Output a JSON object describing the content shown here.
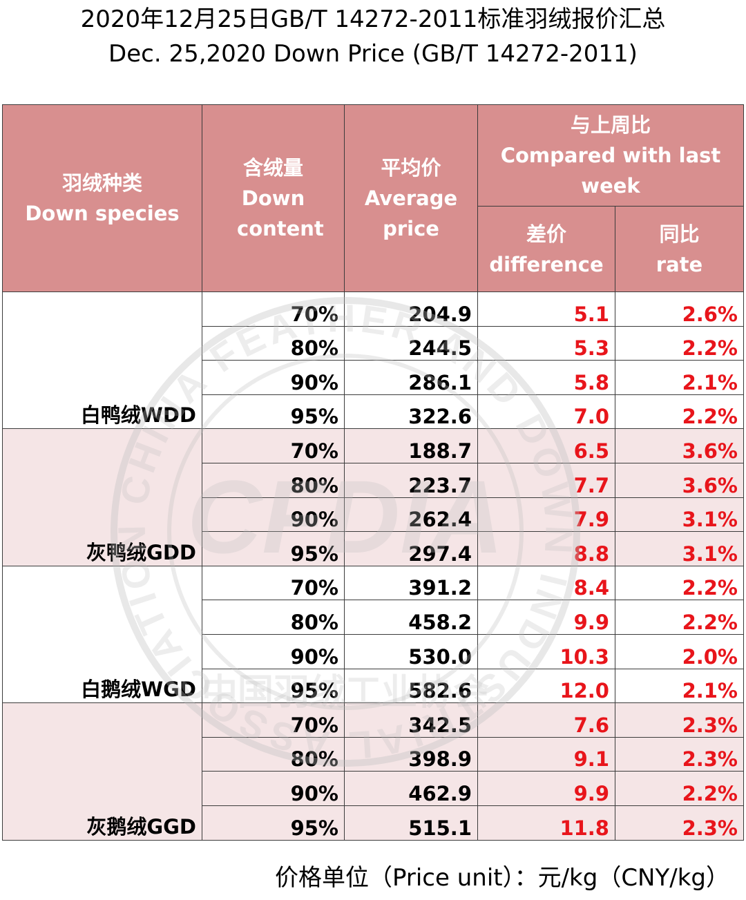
{
  "title_cn": "2020年12月25日GB/T 14272-2011标准羽绒报价汇总",
  "title_en": "Dec. 25,2020 Down Price (GB/T 14272-2011)",
  "headers": {
    "species_cn": "羽绒种类",
    "species_en": "Down species",
    "content_cn": "含绒量",
    "content_en": "Down content",
    "avg_cn": "平均价",
    "avg_en": "Average price",
    "compare_cn": "与上周比",
    "compare_en": "Compared with last week",
    "diff_cn": "差价",
    "diff_en": "difference",
    "rate_cn": "同比",
    "rate_en": "rate"
  },
  "groups": [
    {
      "species": "白鸭绒WDD",
      "rows": [
        {
          "content": "70%",
          "price": "204.9",
          "diff": "5.1",
          "rate": "2.6%"
        },
        {
          "content": "80%",
          "price": "244.5",
          "diff": "5.3",
          "rate": "2.2%"
        },
        {
          "content": "90%",
          "price": "286.1",
          "diff": "5.8",
          "rate": "2.1%"
        },
        {
          "content": "95%",
          "price": "322.6",
          "diff": "7.0",
          "rate": "2.2%"
        }
      ]
    },
    {
      "species": "灰鸭绒GDD",
      "rows": [
        {
          "content": "70%",
          "price": "188.7",
          "diff": "6.5",
          "rate": "3.6%"
        },
        {
          "content": "80%",
          "price": "223.7",
          "diff": "7.7",
          "rate": "3.6%"
        },
        {
          "content": "90%",
          "price": "262.4",
          "diff": "7.9",
          "rate": "3.1%"
        },
        {
          "content": "95%",
          "price": "297.4",
          "diff": "8.8",
          "rate": "3.1%"
        }
      ]
    },
    {
      "species": "白鹅绒WGD",
      "rows": [
        {
          "content": "70%",
          "price": "391.2",
          "diff": "8.4",
          "rate": "2.2%"
        },
        {
          "content": "80%",
          "price": "458.2",
          "diff": "9.9",
          "rate": "2.2%"
        },
        {
          "content": "90%",
          "price": "530.0",
          "diff": "10.3",
          "rate": "2.0%"
        },
        {
          "content": "95%",
          "price": "582.6",
          "diff": "12.0",
          "rate": "2.1%"
        }
      ]
    },
    {
      "species": "灰鹅绒GGD",
      "rows": [
        {
          "content": "70%",
          "price": "342.5",
          "diff": "7.6",
          "rate": "2.3%"
        },
        {
          "content": "80%",
          "price": "398.9",
          "diff": "9.1",
          "rate": "2.3%"
        },
        {
          "content": "90%",
          "price": "462.9",
          "diff": "9.9",
          "rate": "2.2%"
        },
        {
          "content": "95%",
          "price": "515.1",
          "diff": "11.8",
          "rate": "2.3%"
        }
      ]
    }
  ],
  "footer": "价格单位（Price unit）：元/kg（CNY/kg）",
  "watermark": {
    "icon": "association-seal-watermark-icon",
    "text_outer": "CHINA FEATHER AND DOWN INDUSTRIAL ASSOCIATION",
    "text_center": "CFDIA",
    "text_cn": "中国羽绒工业协会"
  },
  "colors": {
    "header_bg": "#d88f8f",
    "band_bg": "#ecd0d1",
    "red_value": "#e8151b"
  }
}
